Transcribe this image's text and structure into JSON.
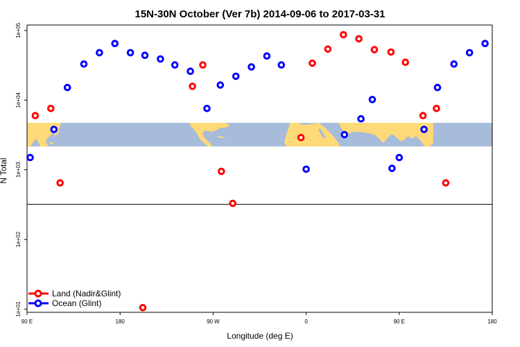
{
  "chart_data": {
    "type": "scatter",
    "title": "15N-30N October (Ver 7b)   2014-09-06 to 2017-03-31",
    "xlabel": "Longitude (deg E)",
    "ylabel": "N Total",
    "x_ticks": [
      {
        "value": 90,
        "label": "90 E"
      },
      {
        "value": 180,
        "label": "180"
      },
      {
        "value": 270,
        "label": "90 W"
      },
      {
        "value": 360,
        "label": "0"
      },
      {
        "value": 450,
        "label": "90 E"
      },
      {
        "value": 540,
        "label": "180"
      }
    ],
    "y_ticks": [
      {
        "value": 10,
        "label": "1e+01"
      },
      {
        "value": 100,
        "label": "1e+02"
      },
      {
        "value": 1000,
        "label": "1e+03"
      },
      {
        "value": 10000,
        "label": "1e+04"
      },
      {
        "value": 100000,
        "label": "1e+05"
      }
    ],
    "xlim": [
      90,
      540
    ],
    "ylim": [
      9,
      120000
    ],
    "y_scale": "log",
    "grid": false,
    "legend_position": "bottom-left",
    "reference_line_y": 320,
    "background_map": "world map strip, 15N-30N latitude band",
    "map_colors": {
      "ocean": "#a7bbda",
      "land": "#fdd977"
    },
    "series": [
      {
        "name": "Land (Nadir&Glint)",
        "color": "#ff0000",
        "points": [
          {
            "x": 98,
            "y": 6000
          },
          {
            "x": 113,
            "y": 7600
          },
          {
            "x": 122,
            "y": 650
          },
          {
            "x": 202,
            "y": 10.5
          },
          {
            "x": 250,
            "y": 15800
          },
          {
            "x": 260,
            "y": 32000
          },
          {
            "x": 278,
            "y": 950
          },
          {
            "x": 289,
            "y": 330
          },
          {
            "x": 355,
            "y": 2900
          },
          {
            "x": 366,
            "y": 34000
          },
          {
            "x": 381,
            "y": 54000
          },
          {
            "x": 396,
            "y": 87000
          },
          {
            "x": 411,
            "y": 76000
          },
          {
            "x": 426,
            "y": 53000
          },
          {
            "x": 442,
            "y": 49000
          },
          {
            "x": 456,
            "y": 35000
          },
          {
            "x": 473,
            "y": 6000
          },
          {
            "x": 486,
            "y": 7600
          },
          {
            "x": 495,
            "y": 650
          }
        ]
      },
      {
        "name": "Ocean (Glint)",
        "color": "#0000ff",
        "points": [
          {
            "x": 93,
            "y": 1500
          },
          {
            "x": 116,
            "y": 3800
          },
          {
            "x": 129,
            "y": 15200
          },
          {
            "x": 145,
            "y": 33000
          },
          {
            "x": 160,
            "y": 48000
          },
          {
            "x": 175,
            "y": 65000
          },
          {
            "x": 190,
            "y": 48000
          },
          {
            "x": 204,
            "y": 44000
          },
          {
            "x": 219,
            "y": 39000
          },
          {
            "x": 233,
            "y": 32000
          },
          {
            "x": 248,
            "y": 26000
          },
          {
            "x": 264,
            "y": 7600
          },
          {
            "x": 277,
            "y": 16500
          },
          {
            "x": 292,
            "y": 22000
          },
          {
            "x": 307,
            "y": 30000
          },
          {
            "x": 322,
            "y": 43000
          },
          {
            "x": 336,
            "y": 32000
          },
          {
            "x": 360,
            "y": 1020
          },
          {
            "x": 397,
            "y": 3200
          },
          {
            "x": 413,
            "y": 5400
          },
          {
            "x": 424,
            "y": 10200
          },
          {
            "x": 443,
            "y": 1050
          },
          {
            "x": 450,
            "y": 1500
          },
          {
            "x": 474,
            "y": 3800
          },
          {
            "x": 487,
            "y": 15200
          },
          {
            "x": 503,
            "y": 33000
          },
          {
            "x": 518,
            "y": 48000
          },
          {
            "x": 533,
            "y": 65000
          }
        ]
      }
    ]
  }
}
